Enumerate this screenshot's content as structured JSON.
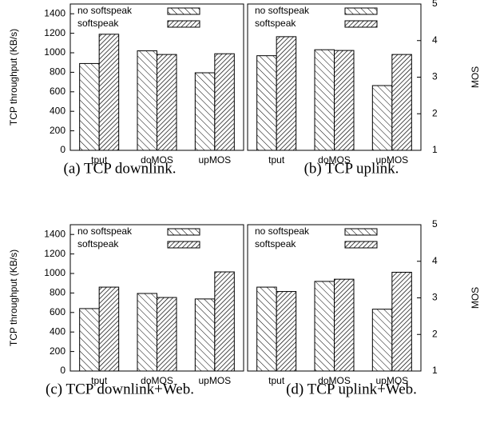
{
  "chart_data": [
    {
      "type": "bar",
      "caption": "(a) TCP downlink.",
      "ylabel": "TCP throughput (KB/s)",
      "categories": [
        "tput",
        "doMOS",
        "upMOS"
      ],
      "category_axis": [
        "y",
        "y2",
        "y2"
      ],
      "series": [
        {
          "name": "no softspeak",
          "values": [
            890,
            3.72,
            3.12
          ]
        },
        {
          "name": "softspeak",
          "values": [
            1190,
            3.62,
            3.64
          ]
        }
      ],
      "ylim": [
        0,
        1500
      ],
      "yticks": [
        0,
        200,
        400,
        600,
        800,
        1000,
        1200,
        1400
      ],
      "y2lim": [
        1,
        5
      ]
    },
    {
      "type": "bar",
      "caption": "(b) TCP uplink.",
      "y2label": "MOS",
      "categories": [
        "tput",
        "doMOS",
        "upMOS"
      ],
      "category_axis": [
        "y",
        "y2",
        "y2"
      ],
      "series": [
        {
          "name": "no softspeak",
          "values": [
            970,
            3.75,
            2.77
          ]
        },
        {
          "name": "softspeak",
          "values": [
            1165,
            3.73,
            3.62
          ]
        }
      ],
      "ylim": [
        0,
        1500
      ],
      "y2lim": [
        1,
        5
      ],
      "y2ticks": [
        1,
        2,
        3,
        4,
        5
      ]
    },
    {
      "type": "bar",
      "caption": "(c) TCP downlink+Web.",
      "ylabel": "TCP throughput (KB/s)",
      "categories": [
        "tput",
        "doMOS",
        "upMOS"
      ],
      "category_axis": [
        "y",
        "y2",
        "y2"
      ],
      "series": [
        {
          "name": "no softspeak",
          "values": [
            640,
            3.12,
            2.97
          ]
        },
        {
          "name": "softspeak",
          "values": [
            860,
            3.01,
            3.71
          ]
        }
      ],
      "ylim": [
        0,
        1500
      ],
      "yticks": [
        0,
        200,
        400,
        600,
        800,
        1000,
        1200,
        1400
      ],
      "y2lim": [
        1,
        5
      ]
    },
    {
      "type": "bar",
      "caption": "(d) TCP uplink+Web.",
      "y2label": "MOS",
      "categories": [
        "tput",
        "doMOS",
        "upMOS"
      ],
      "category_axis": [
        "y",
        "y2",
        "y2"
      ],
      "series": [
        {
          "name": "no softspeak",
          "values": [
            860,
            3.45,
            2.69
          ]
        },
        {
          "name": "softspeak",
          "values": [
            815,
            3.51,
            3.7
          ]
        }
      ],
      "ylim": [
        0,
        1500
      ],
      "y2lim": [
        1,
        5
      ],
      "y2ticks": [
        1,
        2,
        3,
        4,
        5
      ]
    }
  ]
}
